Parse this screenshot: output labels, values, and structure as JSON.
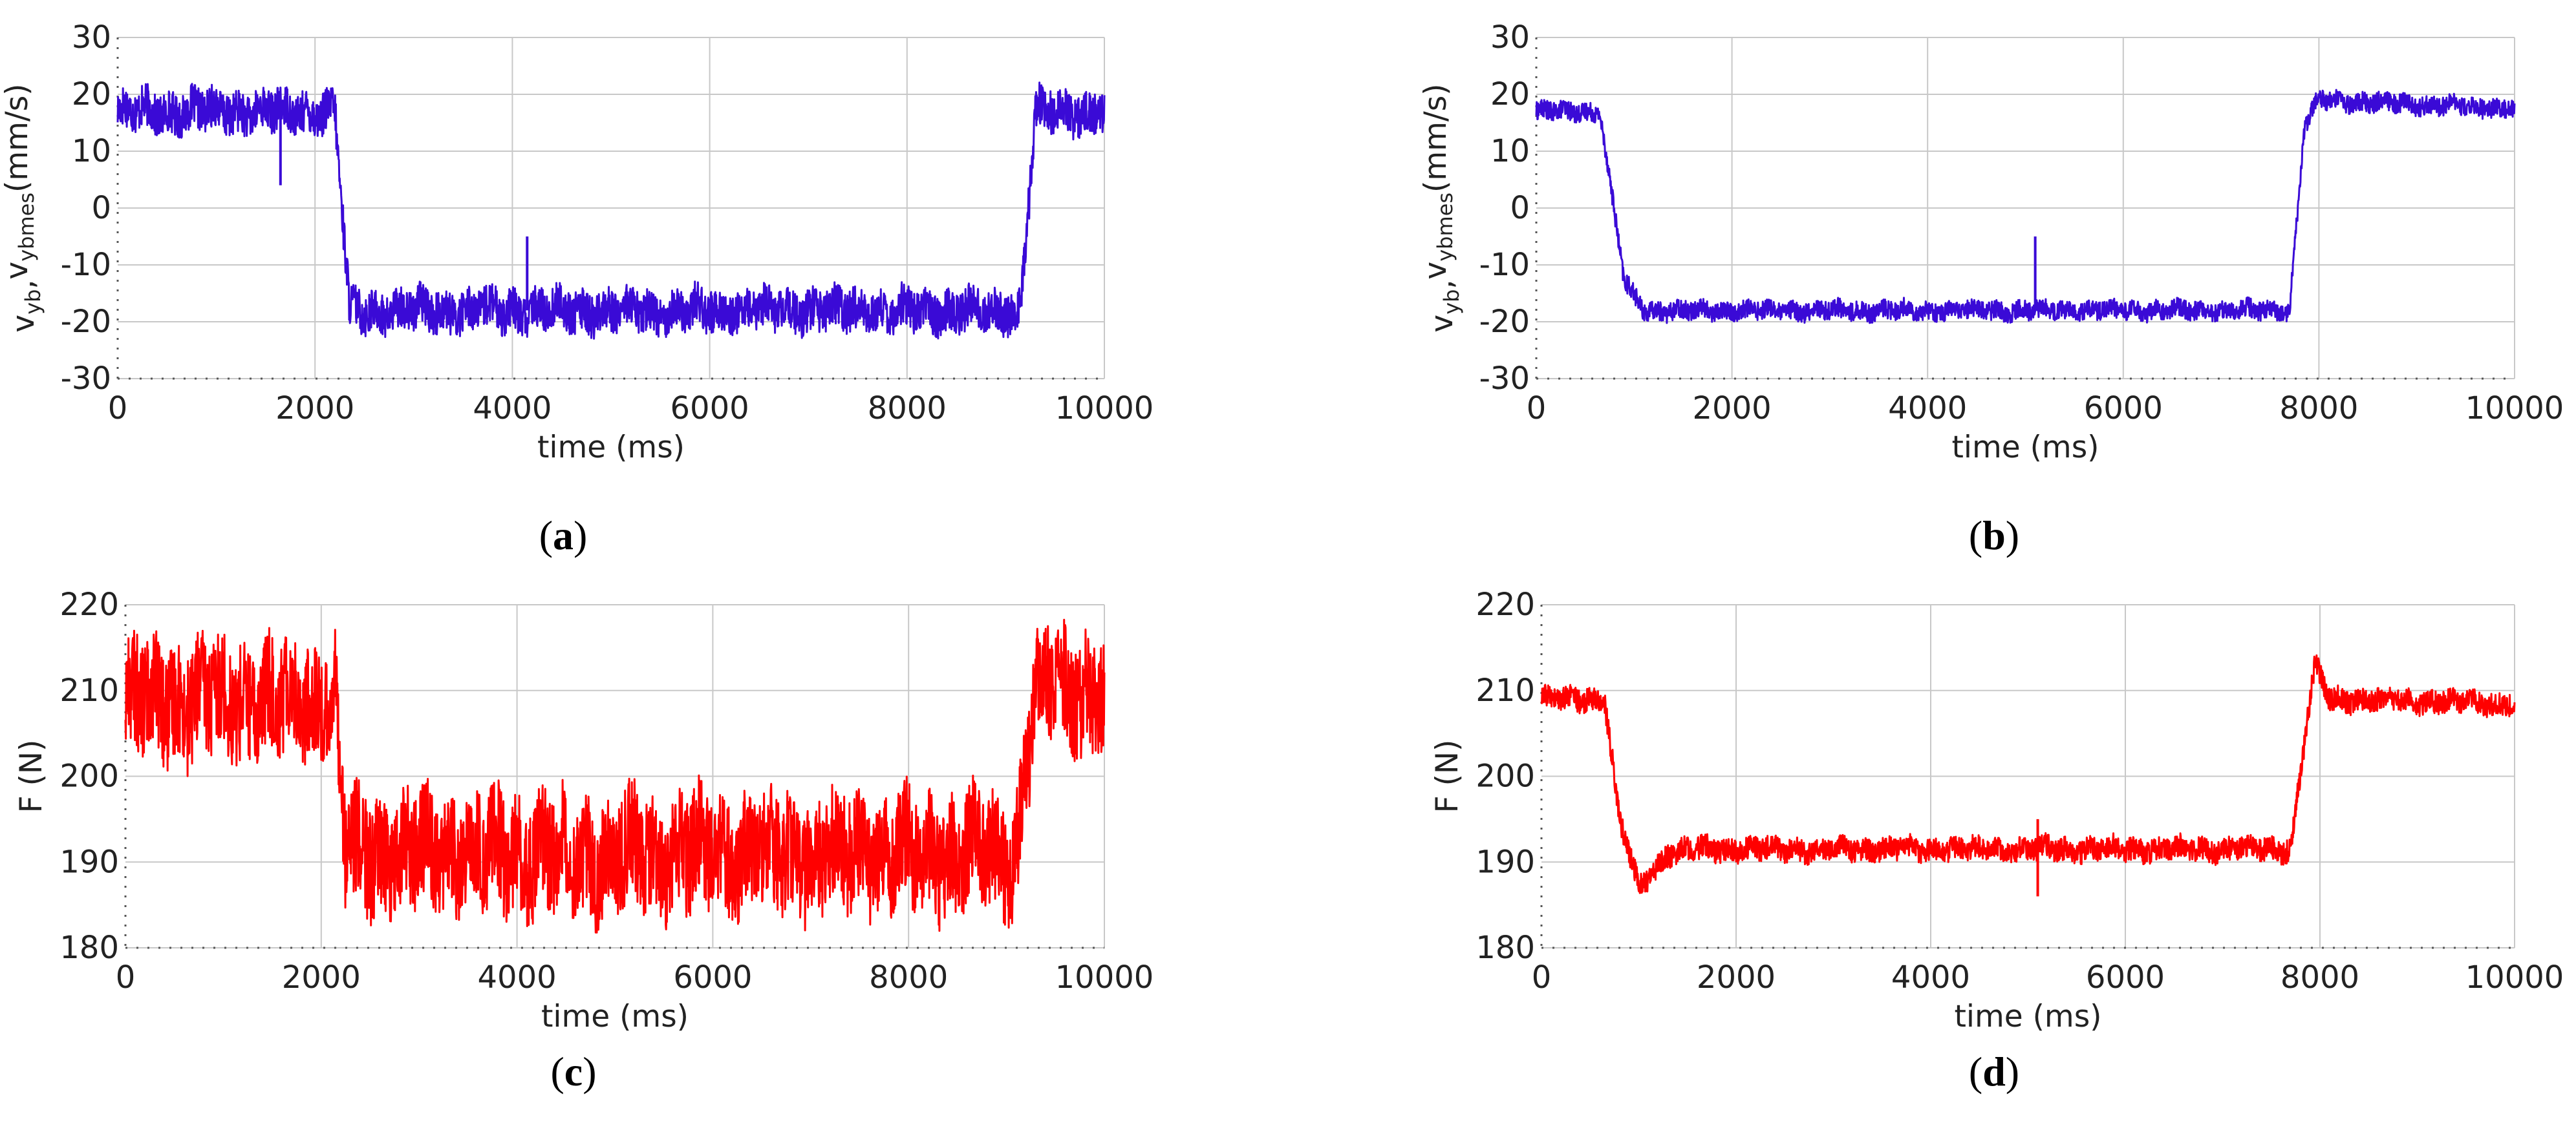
{
  "chart_data": [
    {
      "panel": "(a)",
      "type": "line",
      "xlabel": "time (ms)",
      "ylabel": "v_yb,v_ybmes(mm/s)",
      "xlim": [
        0,
        10000
      ],
      "ylim": [
        -30,
        30
      ],
      "xticks": [
        "0",
        "2000",
        "4000",
        "6000",
        "8000",
        "10000"
      ],
      "yticks": [
        "30",
        "20",
        "10",
        "0",
        "-10",
        "-20",
        "-30"
      ],
      "grid": true,
      "series": [
        {
          "color": "#3a0ad6",
          "x": [
            0,
            2200,
            2350,
            9150,
            9300,
            10000
          ],
          "y": [
            17,
            17,
            -18,
            -18,
            17,
            17
          ],
          "noise_amplitude": 5,
          "spikes": [
            {
              "x": 1650,
              "y": 4
            },
            {
              "x": 4150,
              "y": -5
            }
          ]
        }
      ]
    },
    {
      "panel": "(b)",
      "type": "line",
      "xlabel": "time (ms)",
      "ylabel": "v_yb,v_ybmes(mm/s)",
      "xlim": [
        0,
        10000
      ],
      "ylim": [
        -30,
        30
      ],
      "xticks": [
        "0",
        "2000",
        "4000",
        "6000",
        "8000",
        "10000"
      ],
      "yticks": [
        "30",
        "20",
        "10",
        "0",
        "-10",
        "-20",
        "-30"
      ],
      "grid": true,
      "series": [
        {
          "color": "#3a0ad6",
          "x": [
            0,
            650,
            900,
            1100,
            1300,
            7700,
            7850,
            8000,
            10000
          ],
          "y": [
            17,
            17,
            -13,
            -18,
            -18,
            -18,
            14,
            19,
            17.5
          ],
          "noise_amplitude": 2.2,
          "spikes": [
            {
              "x": 5100,
              "y": -5
            }
          ]
        }
      ]
    },
    {
      "panel": "(c)",
      "type": "line",
      "xlabel": "time (ms)",
      "ylabel": "F (N)",
      "xlim": [
        0,
        10000
      ],
      "ylim": [
        180,
        220
      ],
      "xticks": [
        "0",
        "2000",
        "4000",
        "6000",
        "8000",
        "10000"
      ],
      "yticks": [
        "220",
        "210",
        "200",
        "190",
        "180"
      ],
      "grid": true,
      "series": [
        {
          "color": "#ff0000",
          "x": [
            0,
            2150,
            2250,
            9100,
            9300,
            10000
          ],
          "y": [
            209,
            209,
            191,
            191,
            210,
            210
          ],
          "noise_amplitude": 9,
          "spikes": []
        }
      ]
    },
    {
      "panel": "(d)",
      "type": "line",
      "xlabel": "time (ms)",
      "ylabel": "F (N)",
      "xlim": [
        0,
        10000
      ],
      "ylim": [
        180,
        220
      ],
      "xticks": [
        "0",
        "2000",
        "4000",
        "6000",
        "8000",
        "10000"
      ],
      "yticks": [
        "220",
        "210",
        "200",
        "190",
        "180"
      ],
      "grid": true,
      "series": [
        {
          "color": "#ff0000",
          "x": [
            0,
            650,
            800,
            1000,
            1300,
            1500,
            7700,
            7850,
            7950,
            8100,
            10000
          ],
          "y": [
            209,
            209,
            195,
            187,
            191,
            191.5,
            191.5,
            205,
            213,
            209,
            208.5
          ],
          "noise_amplitude": 1.8,
          "spikes": [
            {
              "x": 5100,
              "y": 186
            },
            {
              "x": 5100,
              "y": 195
            }
          ]
        }
      ]
    }
  ]
}
